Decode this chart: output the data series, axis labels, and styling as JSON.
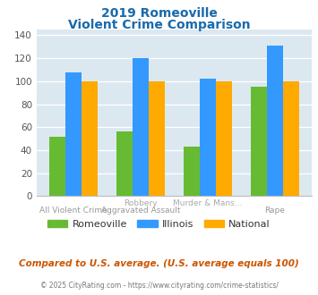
{
  "title_line1": "2019 Romeoville",
  "title_line2": "Violent Crime Comparison",
  "title_color": "#1a6aab",
  "group_labels_row1": [
    "",
    "Robbery",
    "Murder & Mans...",
    ""
  ],
  "group_labels_row2": [
    "All Violent Crime",
    "Aggravated Assault",
    "",
    "Rape"
  ],
  "romeoville": [
    52,
    56,
    43,
    95
  ],
  "illinois": [
    108,
    120,
    102,
    131
  ],
  "national": [
    100,
    100,
    100,
    100
  ],
  "bar_color_romeoville": "#66bb33",
  "bar_color_illinois": "#3399ff",
  "bar_color_national": "#ffaa00",
  "ylim": [
    0,
    145
  ],
  "yticks": [
    0,
    20,
    40,
    60,
    80,
    100,
    120,
    140
  ],
  "bg_color": "#dce8ef",
  "footer_text1": "Compared to U.S. average. (U.S. average equals 100)",
  "footer_text2": "© 2025 CityRating.com - https://www.cityrating.com/crime-statistics/",
  "footer_color1": "#cc5500",
  "footer_color2": "#777777",
  "legend_labels": [
    "Romeoville",
    "Illinois",
    "National"
  ],
  "label_color": "#aaaaaa",
  "label_color2": "#999999"
}
